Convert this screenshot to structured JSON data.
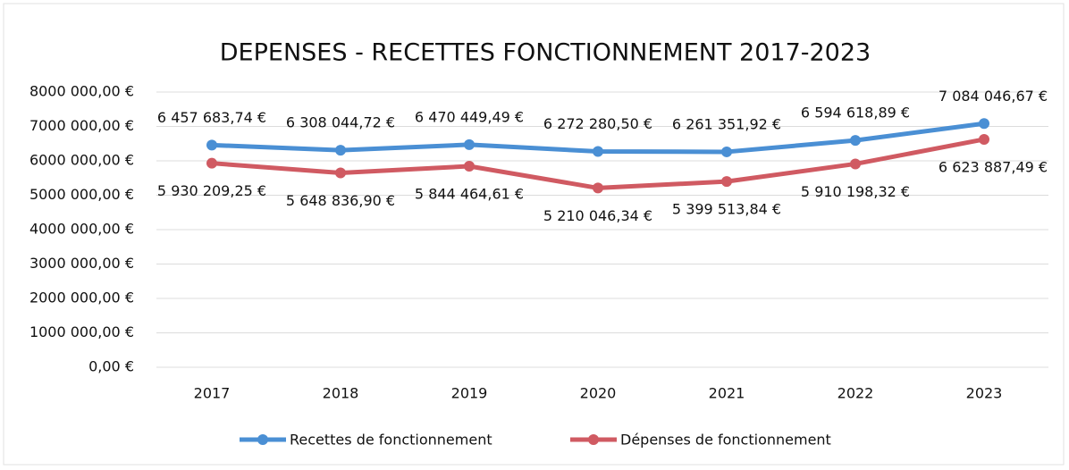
{
  "chart_data": {
    "type": "line",
    "title": "DEPENSES - RECETTES FONCTIONNEMENT 2017-2023",
    "categories": [
      "2017",
      "2018",
      "2019",
      "2020",
      "2021",
      "2022",
      "2023"
    ],
    "series": [
      {
        "name": "Recettes de fonctionnement",
        "color": "#4a8fd4",
        "values": [
          6457683.74,
          6308044.72,
          6470449.49,
          6272280.5,
          6261351.92,
          6594618.89,
          7084046.67
        ],
        "value_labels": [
          "6 457 683,74 €",
          "6 308 044,72 €",
          "6 470 449,49 €",
          "6 272 280,50 €",
          "6 261 351,92 €",
          "6 594 618,89 €",
          "7 084 046,67 €"
        ]
      },
      {
        "name": "Dépenses de fonctionnement",
        "color": "#d05a62",
        "values": [
          5930209.25,
          5648836.9,
          5844464.61,
          5210046.34,
          5399513.84,
          5910198.32,
          6623887.49
        ],
        "value_labels": [
          "5 930 209,25 €",
          "5 648 836,90 €",
          "5 844 464,61 €",
          "5 210 046,34 €",
          "5 399 513,84 €",
          "5 910 198,32 €",
          "6 623 887,49 €"
        ]
      }
    ],
    "ylim": [
      0,
      8000000
    ],
    "yticks": [
      {
        "value": 0,
        "label": "0,00 €"
      },
      {
        "value": 1000000,
        "label": "1000 000,00 €"
      },
      {
        "value": 2000000,
        "label": "2000 000,00 €"
      },
      {
        "value": 3000000,
        "label": "3000 000,00 €"
      },
      {
        "value": 4000000,
        "label": "4000 000,00 €"
      },
      {
        "value": 5000000,
        "label": "5000 000,00 €"
      },
      {
        "value": 6000000,
        "label": "6000 000,00 €"
      },
      {
        "value": 7000000,
        "label": "7000 000,00 €"
      },
      {
        "value": 8000000,
        "label": "8000 000,00 €"
      }
    ],
    "grid": true
  }
}
